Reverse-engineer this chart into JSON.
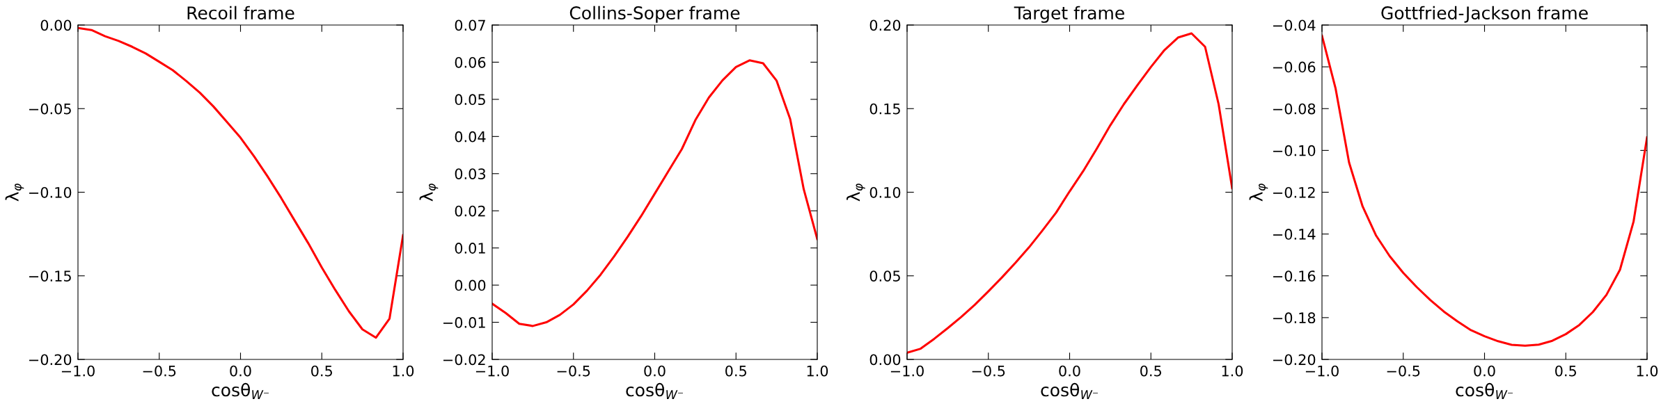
{
  "chart_data": [
    {
      "type": "line",
      "title": "Recoil frame",
      "xlabel": "cosθ$_{W⁻}$",
      "ylabel": "λ$_{φ}$",
      "xlim": [
        -1.0,
        1.0
      ],
      "xticks": [
        {
          "value": -1.0,
          "label": "−1.0"
        },
        {
          "value": -0.5,
          "label": "−0.5"
        },
        {
          "value": 0.0,
          "label": "0.0"
        },
        {
          "value": 0.5,
          "label": "0.5"
        },
        {
          "value": 1.0,
          "label": "1.0"
        }
      ],
      "ylim": [
        -0.2,
        0.0
      ],
      "yticks": [
        {
          "value": -0.2,
          "label": "−0.20"
        },
        {
          "value": -0.15,
          "label": "−0.15"
        },
        {
          "value": -0.1,
          "label": "−0.10"
        },
        {
          "value": -0.05,
          "label": "−0.05"
        },
        {
          "value": 0.0,
          "label": "0.00"
        }
      ],
      "grid": false,
      "x": [
        -1.0,
        -0.9167,
        -0.8333,
        -0.75,
        -0.6667,
        -0.5833,
        -0.5,
        -0.4167,
        -0.3333,
        -0.25,
        -0.1667,
        -0.0833,
        0.0,
        0.0833,
        0.1667,
        0.25,
        0.3333,
        0.4167,
        0.5,
        0.5833,
        0.6667,
        0.75,
        0.8333,
        0.9167,
        1.0
      ],
      "series": [
        {
          "color": "#ff0000",
          "values": [
            -0.0018,
            -0.003,
            -0.0067,
            -0.0095,
            -0.013,
            -0.017,
            -0.022,
            -0.027,
            -0.0335,
            -0.0405,
            -0.0487,
            -0.058,
            -0.0674,
            -0.0785,
            -0.0906,
            -0.1034,
            -0.117,
            -0.1305,
            -0.145,
            -0.1585,
            -0.1712,
            -0.182,
            -0.187,
            -0.1756,
            -0.1257
          ]
        }
      ]
    },
    {
      "type": "line",
      "title": "Collins-Soper frame",
      "xlabel": "cosθ$_{W⁻}$",
      "ylabel": "λ$_{φ}$",
      "xlim": [
        -1.0,
        1.0
      ],
      "xticks": [
        {
          "value": -1.0,
          "label": "−1.0"
        },
        {
          "value": -0.5,
          "label": "−0.5"
        },
        {
          "value": 0.0,
          "label": "0.0"
        },
        {
          "value": 0.5,
          "label": "0.5"
        },
        {
          "value": 1.0,
          "label": "1.0"
        }
      ],
      "ylim": [
        -0.02,
        0.07
      ],
      "yticks": [
        {
          "value": -0.02,
          "label": "−0.02"
        },
        {
          "value": -0.01,
          "label": "−0.01"
        },
        {
          "value": 0.0,
          "label": "0.00"
        },
        {
          "value": 0.01,
          "label": "0.01"
        },
        {
          "value": 0.02,
          "label": "0.02"
        },
        {
          "value": 0.03,
          "label": "0.03"
        },
        {
          "value": 0.04,
          "label": "0.04"
        },
        {
          "value": 0.05,
          "label": "0.05"
        },
        {
          "value": 0.06,
          "label": "0.06"
        },
        {
          "value": 0.07,
          "label": "0.07"
        }
      ],
      "grid": false,
      "x": [
        -1.0,
        -0.9167,
        -0.8333,
        -0.75,
        -0.6667,
        -0.5833,
        -0.5,
        -0.4167,
        -0.3333,
        -0.25,
        -0.1667,
        -0.0833,
        0.0,
        0.0833,
        0.1667,
        0.25,
        0.3333,
        0.4167,
        0.5,
        0.5833,
        0.6667,
        0.75,
        0.8333,
        0.9167,
        1.0
      ],
      "series": [
        {
          "color": "#ff0000",
          "values": [
            -0.005,
            -0.0075,
            -0.0104,
            -0.011,
            -0.01,
            -0.008,
            -0.0052,
            -0.0015,
            0.0028,
            0.0077,
            0.013,
            0.0186,
            0.0246,
            0.0306,
            0.0366,
            0.0444,
            0.0505,
            0.0551,
            0.0587,
            0.0605,
            0.0597,
            0.055,
            0.0447,
            0.0258,
            0.0124
          ]
        }
      ]
    },
    {
      "type": "line",
      "title": "Target frame",
      "xlabel": "cosθ$_{W⁻}$",
      "ylabel": "λ$_{φ}$",
      "xlim": [
        -1.0,
        1.0
      ],
      "xticks": [
        {
          "value": -1.0,
          "label": "−1.0"
        },
        {
          "value": -0.5,
          "label": "−0.5"
        },
        {
          "value": 0.0,
          "label": "0.0"
        },
        {
          "value": 0.5,
          "label": "0.5"
        },
        {
          "value": 1.0,
          "label": "1.0"
        }
      ],
      "ylim": [
        0.0,
        0.2
      ],
      "yticks": [
        {
          "value": 0.0,
          "label": "0.00"
        },
        {
          "value": 0.05,
          "label": "0.05"
        },
        {
          "value": 0.1,
          "label": "0.10"
        },
        {
          "value": 0.15,
          "label": "0.15"
        },
        {
          "value": 0.2,
          "label": "0.20"
        }
      ],
      "grid": false,
      "x": [
        -1.0,
        -0.9167,
        -0.8333,
        -0.75,
        -0.6667,
        -0.5833,
        -0.5,
        -0.4167,
        -0.3333,
        -0.25,
        -0.1667,
        -0.0833,
        0.0,
        0.0833,
        0.1667,
        0.25,
        0.3333,
        0.4167,
        0.5,
        0.5833,
        0.6667,
        0.75,
        0.8333,
        0.9167,
        1.0
      ],
      "series": [
        {
          "color": "#ff0000",
          "values": [
            0.004,
            0.0064,
            0.0123,
            0.0187,
            0.0254,
            0.0327,
            0.0407,
            0.049,
            0.0578,
            0.067,
            0.0772,
            0.0878,
            0.1005,
            0.1126,
            0.126,
            0.14,
            0.1526,
            0.164,
            0.1749,
            0.185,
            0.1925,
            0.195,
            0.187,
            0.1526,
            0.1024
          ]
        }
      ]
    },
    {
      "type": "line",
      "title": "Gottfried-Jackson frame",
      "xlabel": "cosθ$_{W⁻}$",
      "ylabel": "λ$_{φ}$",
      "xlim": [
        -1.0,
        1.0
      ],
      "xticks": [
        {
          "value": -1.0,
          "label": "−1.0"
        },
        {
          "value": -0.5,
          "label": "−0.5"
        },
        {
          "value": 0.0,
          "label": "0.0"
        },
        {
          "value": 0.5,
          "label": "0.5"
        },
        {
          "value": 1.0,
          "label": "1.0"
        }
      ],
      "ylim": [
        -0.2,
        -0.04
      ],
      "yticks": [
        {
          "value": -0.2,
          "label": "−0.20"
        },
        {
          "value": -0.18,
          "label": "−0.18"
        },
        {
          "value": -0.16,
          "label": "−0.16"
        },
        {
          "value": -0.14,
          "label": "−0.14"
        },
        {
          "value": -0.12,
          "label": "−0.12"
        },
        {
          "value": -0.1,
          "label": "−0.10"
        },
        {
          "value": -0.08,
          "label": "−0.08"
        },
        {
          "value": -0.06,
          "label": "−0.06"
        },
        {
          "value": -0.04,
          "label": "−0.04"
        }
      ],
      "grid": false,
      "x": [
        -1.0,
        -0.9167,
        -0.8333,
        -0.75,
        -0.6667,
        -0.5833,
        -0.5,
        -0.4167,
        -0.3333,
        -0.25,
        -0.1667,
        -0.0833,
        0.0,
        0.0833,
        0.1667,
        0.25,
        0.3333,
        0.4167,
        0.5,
        0.5833,
        0.6667,
        0.75,
        0.8333,
        0.9167,
        1.0
      ],
      "series": [
        {
          "color": "#ff0000",
          "values": [
            -0.0451,
            -0.0702,
            -0.1058,
            -0.1268,
            -0.1408,
            -0.1506,
            -0.1586,
            -0.1654,
            -0.1716,
            -0.1771,
            -0.1818,
            -0.186,
            -0.1889,
            -0.1913,
            -0.193,
            -0.1934,
            -0.1929,
            -0.1911,
            -0.1879,
            -0.1835,
            -0.1773,
            -0.1691,
            -0.1571,
            -0.1341,
            -0.0937
          ]
        }
      ]
    }
  ]
}
